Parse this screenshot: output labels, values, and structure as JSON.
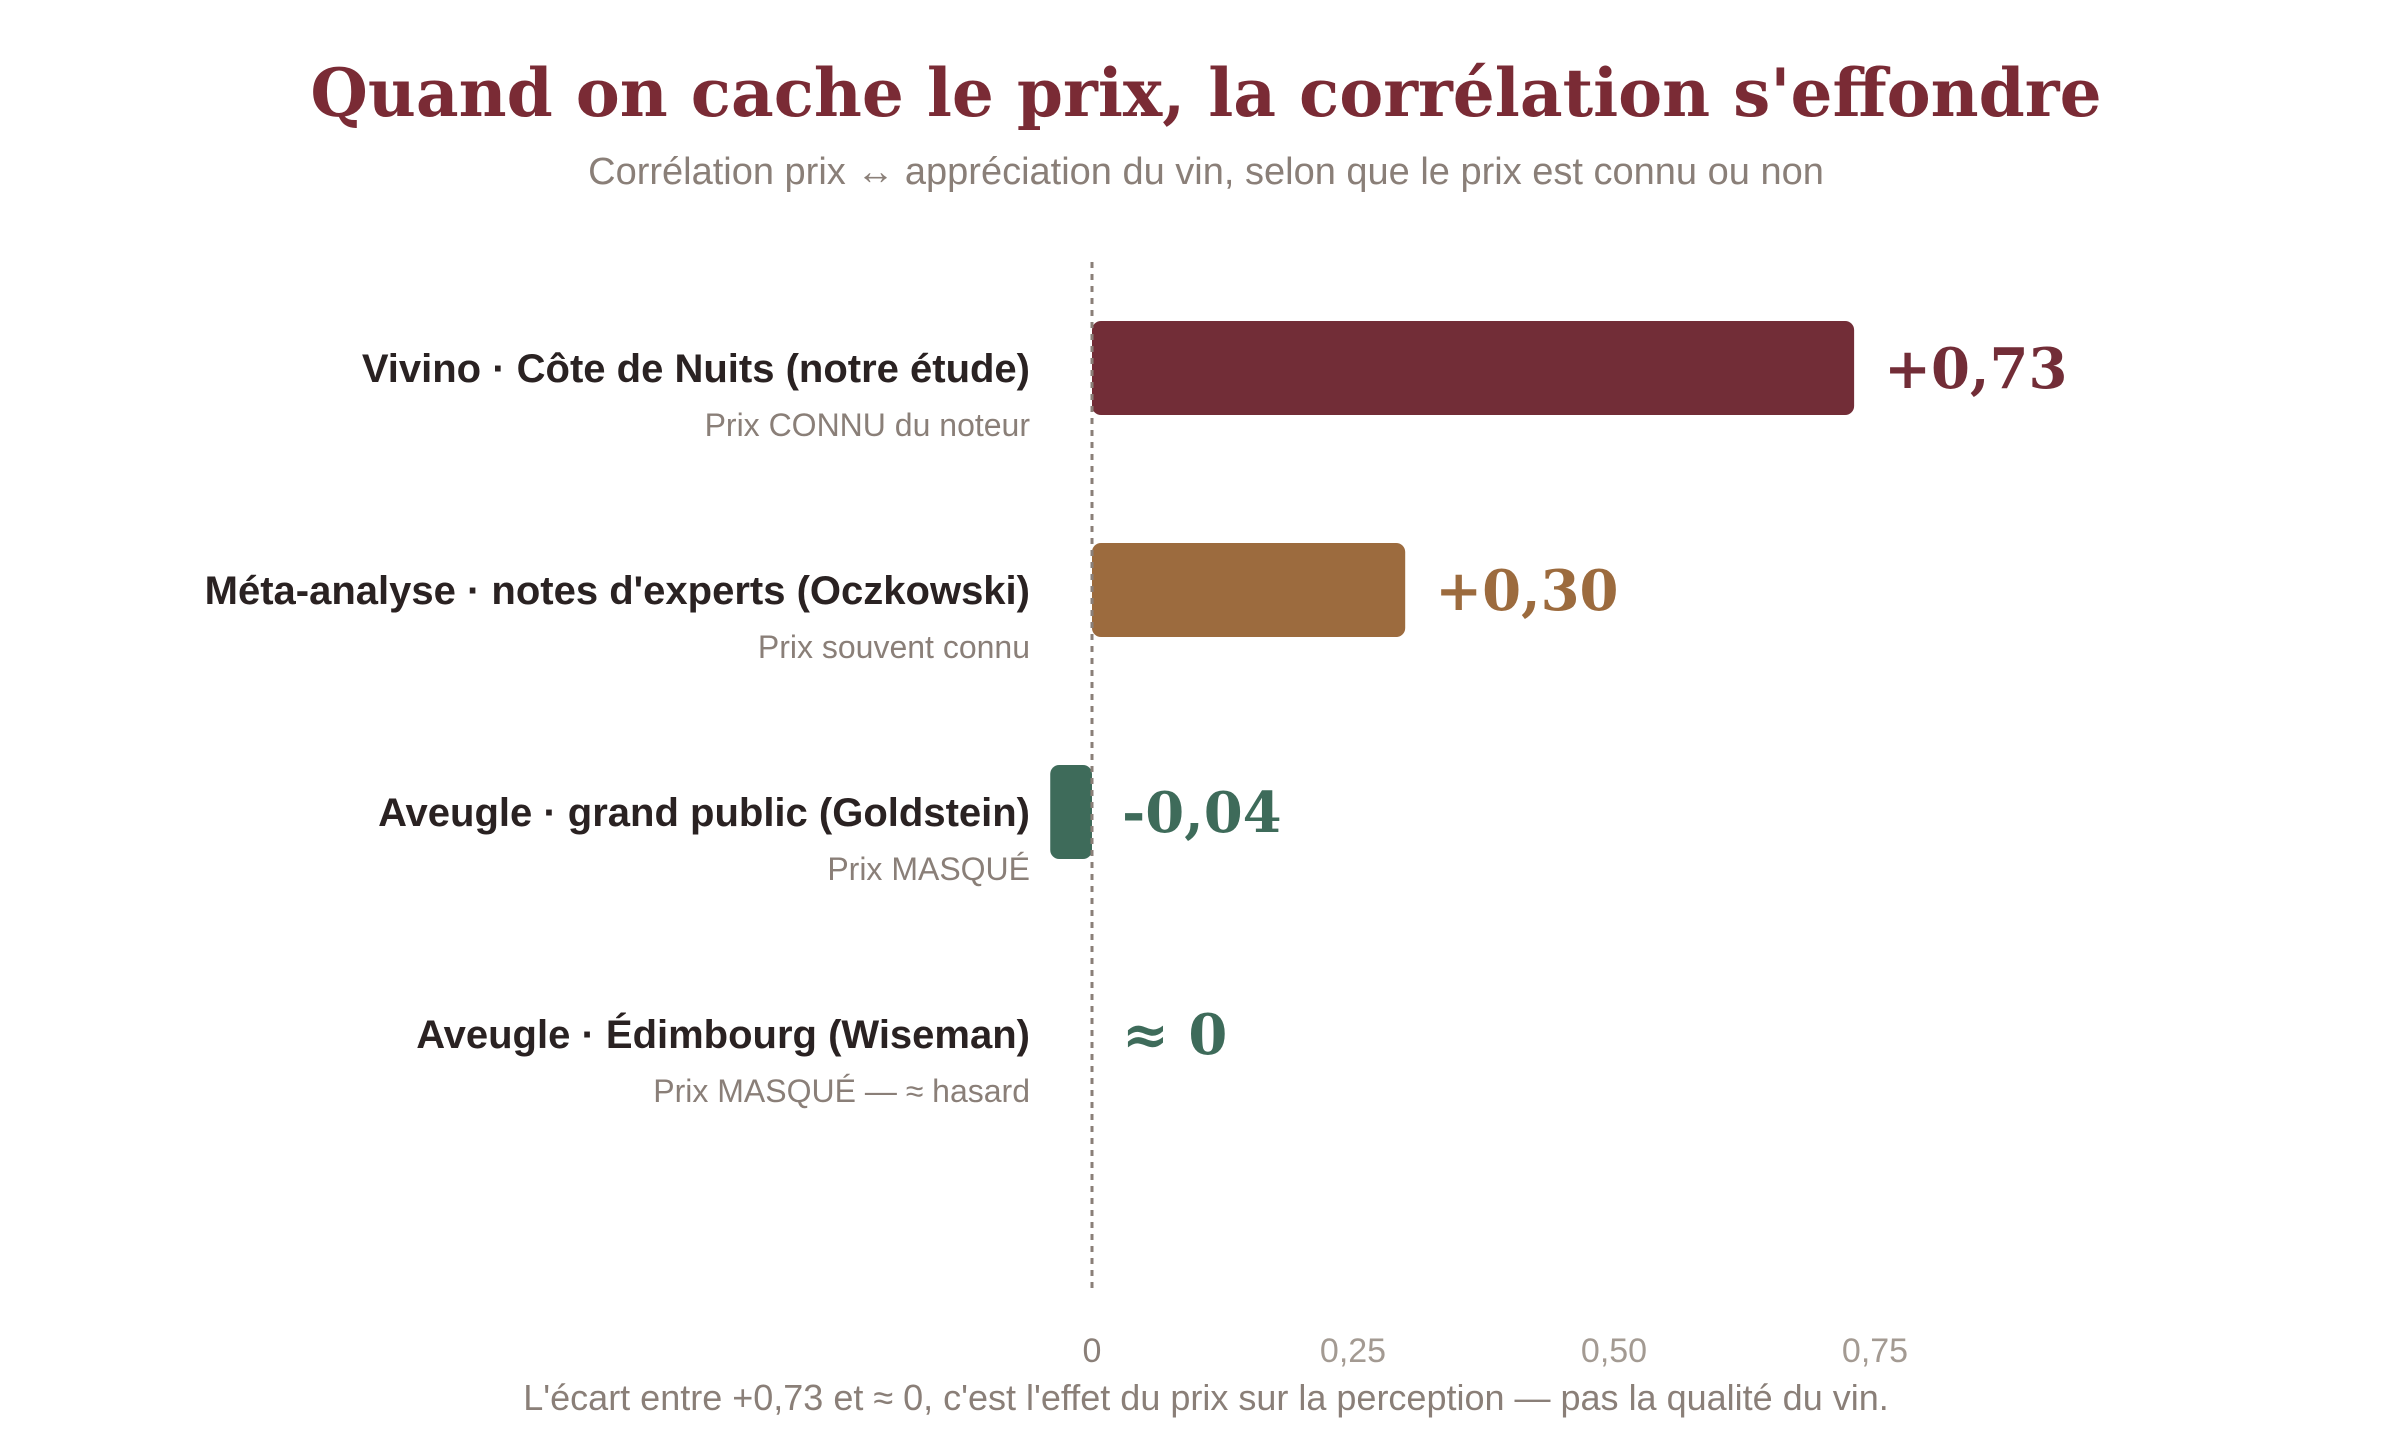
{
  "chart_data": {
    "type": "bar",
    "orientation": "horizontal",
    "title": "Quand on cache le prix, la corrélation s'effondre",
    "subtitle": "Corrélation prix ↔ appréciation du vin, selon que le prix est connu ou non",
    "categories": [
      "Vivino · Côte de Nuits (notre étude)",
      "Méta-analyse · notes d'experts (Oczkowski)",
      "Aveugle · grand public (Goldstein)",
      "Aveugle · Édimbourg (Wiseman)"
    ],
    "category_notes": [
      "Prix CONNU du noteur",
      "Prix souvent connu",
      "Prix MASQUÉ",
      "Prix MASQUÉ — ≈ hasard"
    ],
    "values": [
      0.73,
      0.3,
      -0.04,
      0
    ],
    "value_labels": [
      "+0,73",
      "+0,30",
      "-0,04",
      "≈ 0"
    ],
    "colors": [
      "#722d37",
      "#9c6b3e",
      "#3e6b5a",
      "#3e6b5a"
    ],
    "xlim": [
      -0.04,
      0.95
    ],
    "x_ticks": [
      0,
      0.25,
      0.5,
      0.75
    ],
    "x_tick_labels": [
      "0",
      "0,25",
      "0,50",
      "0,75"
    ],
    "zero_line": "dotted",
    "grid": false,
    "legend": "none",
    "footnote": "L'écart entre +0,73 et ≈ 0, c'est l'effet du prix sur la perception — pas la qualité du vin."
  }
}
